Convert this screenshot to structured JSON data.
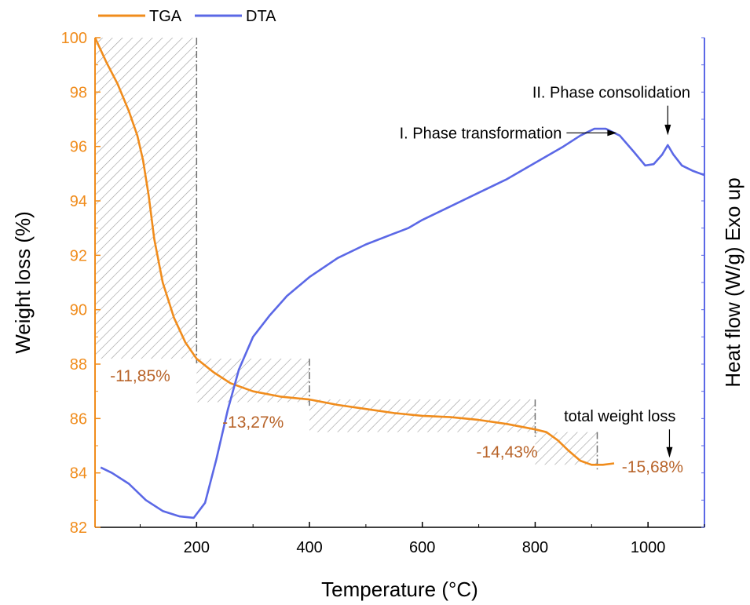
{
  "chart_data": {
    "type": "line",
    "xlabel": "Temperature (°C)",
    "ylabel_left": "Weight loss (%)",
    "ylabel_right": "Heat flow (W/g) Exo up",
    "xlim": [
      20,
      1100
    ],
    "ylim": [
      82,
      100
    ],
    "x_ticks": [
      200,
      400,
      600,
      800,
      1000
    ],
    "y_ticks": [
      82,
      84,
      86,
      88,
      90,
      92,
      94,
      96,
      98,
      100
    ],
    "colors": {
      "tga": "#f08c1c",
      "dta": "#5b68e6",
      "loss_label": "#b8642a",
      "axis_left": "#f08c1c",
      "axis_right": "#5b68e6"
    },
    "legend": [
      {
        "name": "TGA",
        "color": "#f08c1c"
      },
      {
        "name": "DTA",
        "color": "#5b68e6"
      }
    ],
    "series": [
      {
        "name": "TGA",
        "axis": "left",
        "points": [
          [
            20,
            100.0
          ],
          [
            40,
            99.1
          ],
          [
            60,
            98.3
          ],
          [
            80,
            97.3
          ],
          [
            95,
            96.4
          ],
          [
            105,
            95.5
          ],
          [
            115,
            94.2
          ],
          [
            125,
            92.6
          ],
          [
            140,
            91.0
          ],
          [
            160,
            89.7
          ],
          [
            180,
            88.8
          ],
          [
            200,
            88.2
          ],
          [
            230,
            87.7
          ],
          [
            260,
            87.3
          ],
          [
            300,
            87.0
          ],
          [
            350,
            86.8
          ],
          [
            400,
            86.7
          ],
          [
            450,
            86.5
          ],
          [
            500,
            86.35
          ],
          [
            550,
            86.2
          ],
          [
            600,
            86.1
          ],
          [
            650,
            86.05
          ],
          [
            700,
            85.95
          ],
          [
            750,
            85.8
          ],
          [
            800,
            85.6
          ],
          [
            820,
            85.5
          ],
          [
            840,
            85.2
          ],
          [
            860,
            84.8
          ],
          [
            880,
            84.45
          ],
          [
            900,
            84.3
          ],
          [
            920,
            84.3
          ],
          [
            940,
            84.35
          ]
        ]
      },
      {
        "name": "DTA",
        "axis": "right",
        "points": [
          [
            30,
            84.2
          ],
          [
            50,
            84.0
          ],
          [
            80,
            83.6
          ],
          [
            110,
            83.0
          ],
          [
            140,
            82.6
          ],
          [
            170,
            82.4
          ],
          [
            195,
            82.35
          ],
          [
            215,
            82.9
          ],
          [
            235,
            84.5
          ],
          [
            255,
            86.3
          ],
          [
            275,
            87.8
          ],
          [
            300,
            89.0
          ],
          [
            330,
            89.8
          ],
          [
            360,
            90.5
          ],
          [
            400,
            91.2
          ],
          [
            450,
            91.9
          ],
          [
            500,
            92.4
          ],
          [
            550,
            92.8
          ],
          [
            575,
            93.0
          ],
          [
            600,
            93.3
          ],
          [
            650,
            93.8
          ],
          [
            700,
            94.3
          ],
          [
            750,
            94.8
          ],
          [
            800,
            95.4
          ],
          [
            850,
            96.0
          ],
          [
            880,
            96.4
          ],
          [
            905,
            96.65
          ],
          [
            925,
            96.65
          ],
          [
            950,
            96.4
          ],
          [
            975,
            95.8
          ],
          [
            995,
            95.3
          ],
          [
            1010,
            95.35
          ],
          [
            1025,
            95.7
          ],
          [
            1035,
            96.05
          ],
          [
            1045,
            95.7
          ],
          [
            1060,
            95.3
          ],
          [
            1080,
            95.1
          ],
          [
            1100,
            94.95
          ]
        ]
      }
    ],
    "regions": [
      {
        "x": [
          20,
          200
        ],
        "y": [
          88.2,
          100
        ],
        "label": "-11,85%",
        "label_at": [
          100,
          87.6
        ]
      },
      {
        "x": [
          200,
          400
        ],
        "y": [
          86.6,
          88.2
        ],
        "label": "-13,27%",
        "label_at": [
          300,
          85.9
        ]
      },
      {
        "x": [
          400,
          800
        ],
        "y": [
          85.5,
          86.7
        ],
        "label": "-14,43%",
        "label_at": [
          750,
          84.8
        ]
      },
      {
        "x": [
          800,
          910
        ],
        "y": [
          84.3,
          85.5
        ],
        "label": "-15,68%",
        "label_at": [
          1008,
          84.25
        ]
      }
    ],
    "annotations": [
      {
        "text": "I. Phase transformation",
        "at": [
          850,
          96.5
        ]
      },
      {
        "text": "II. Phase consolidation",
        "at": [
          935,
          98.0
        ]
      },
      {
        "text": "total weight loss",
        "at": [
          950,
          86.1
        ]
      }
    ]
  }
}
